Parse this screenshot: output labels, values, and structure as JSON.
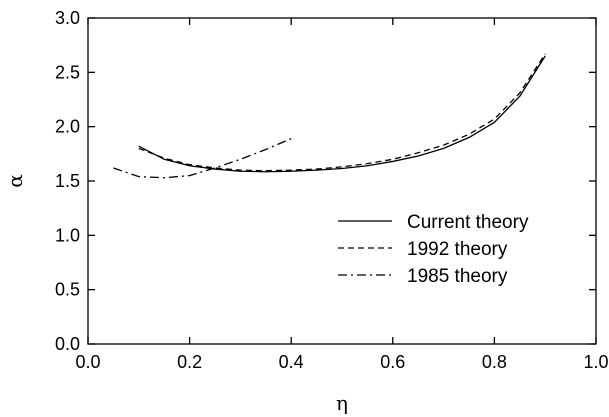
{
  "chart_data": {
    "type": "line",
    "xlabel": "η",
    "ylabel": "α",
    "xlim": [
      0.0,
      1.0
    ],
    "ylim": [
      0.0,
      3.0
    ],
    "xticks": [
      "0.0",
      "0.2",
      "0.4",
      "0.6",
      "0.8",
      "1.0"
    ],
    "yticks": [
      "0.0",
      "0.5",
      "1.0",
      "1.5",
      "2.0",
      "2.5",
      "3.0"
    ],
    "grid": false,
    "legend_position": "center-right",
    "series": [
      {
        "name": "Current theory",
        "dash": "solid",
        "color": "#000000",
        "x": [
          0.1,
          0.15,
          0.2,
          0.25,
          0.3,
          0.35,
          0.4,
          0.45,
          0.5,
          0.55,
          0.6,
          0.65,
          0.7,
          0.75,
          0.8,
          0.85,
          0.9
        ],
        "y": [
          1.82,
          1.7,
          1.64,
          1.61,
          1.59,
          1.585,
          1.59,
          1.6,
          1.615,
          1.64,
          1.68,
          1.73,
          1.8,
          1.9,
          2.04,
          2.28,
          2.65
        ]
      },
      {
        "name": "1992 theory",
        "dash": "dashed",
        "color": "#000000",
        "x": [
          0.1,
          0.15,
          0.2,
          0.25,
          0.3,
          0.35,
          0.4,
          0.45,
          0.5,
          0.55,
          0.6,
          0.65,
          0.7,
          0.75,
          0.8,
          0.85,
          0.9
        ],
        "y": [
          1.8,
          1.71,
          1.65,
          1.62,
          1.6,
          1.595,
          1.6,
          1.61,
          1.63,
          1.66,
          1.7,
          1.76,
          1.83,
          1.93,
          2.07,
          2.31,
          2.67
        ]
      },
      {
        "name": "1985 theory",
        "dash": "dashdot",
        "color": "#000000",
        "x": [
          0.05,
          0.1,
          0.15,
          0.2,
          0.25,
          0.3,
          0.35,
          0.4
        ],
        "y": [
          1.62,
          1.54,
          1.53,
          1.55,
          1.62,
          1.7,
          1.79,
          1.89
        ]
      }
    ]
  }
}
